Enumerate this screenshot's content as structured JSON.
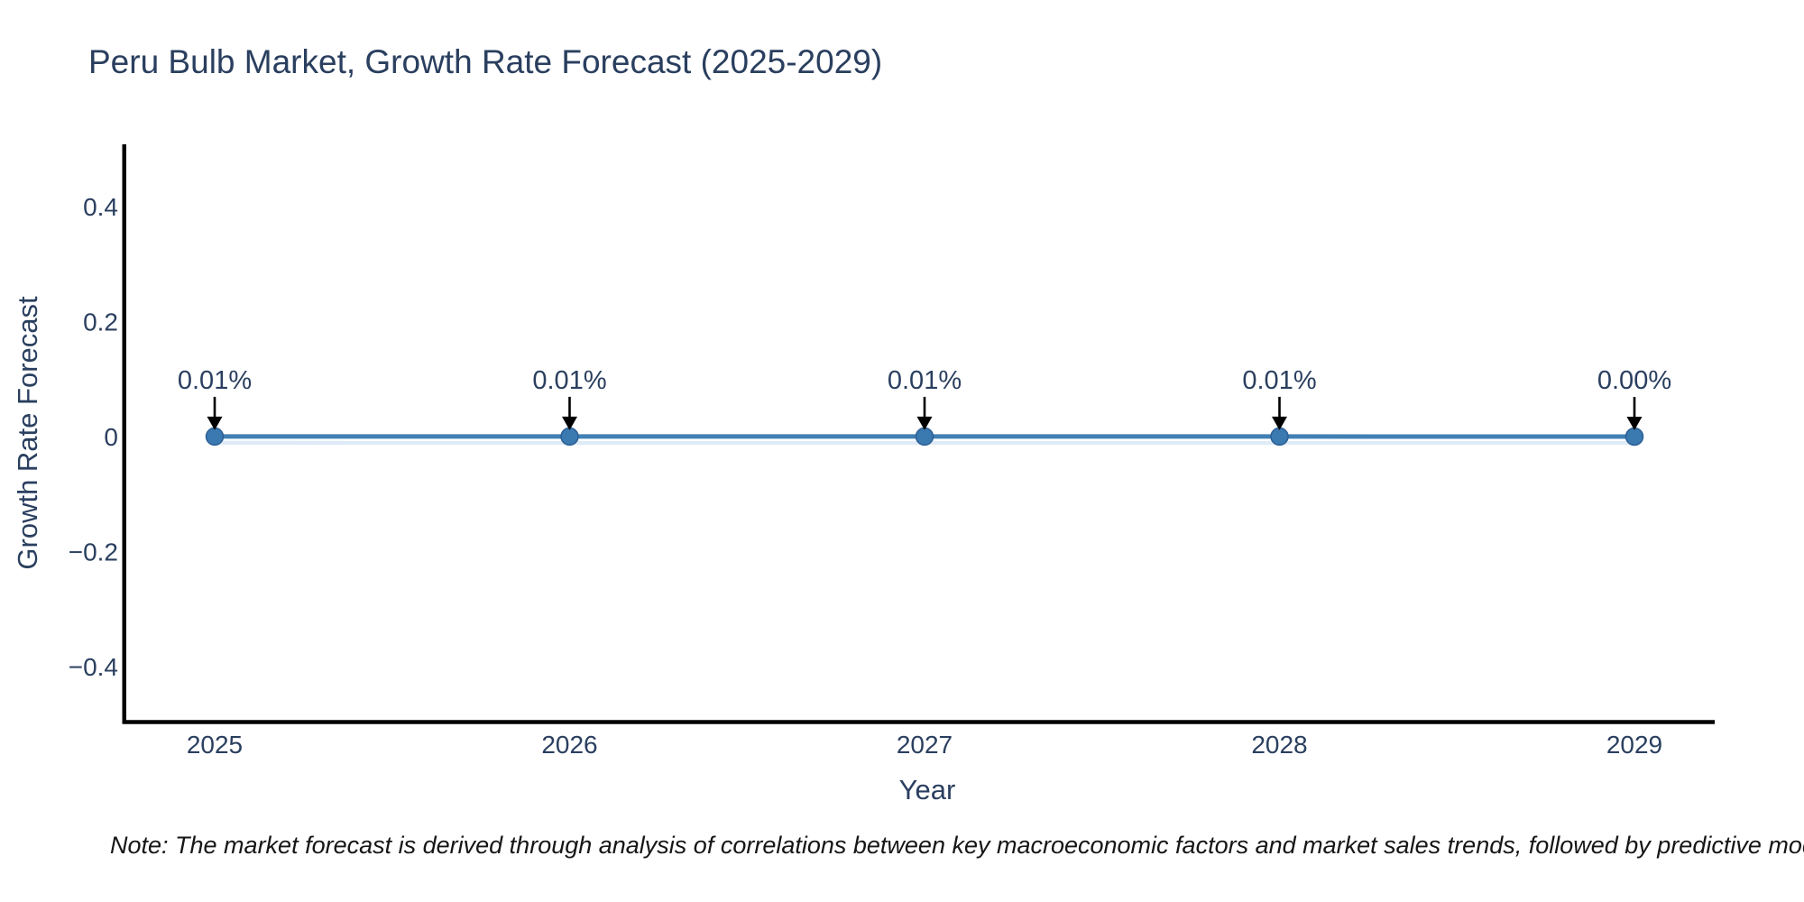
{
  "note": {
    "text": "Note: The market forecast is derived through analysis of correlations between key macroeconomic factors and market sales trends, followed by predictive modeling to project future sales"
  },
  "chart_data": {
    "type": "line",
    "title": "Peru Bulb Market, Growth Rate Forecast (2025-2029)",
    "xlabel": "Year",
    "ylabel": "Growth Rate Forecast",
    "categories": [
      "2025",
      "2026",
      "2027",
      "2028",
      "2029"
    ],
    "series": [
      {
        "name": "Growth Rate Forecast",
        "values_pct": [
          0.01,
          0.01,
          0.01,
          0.01,
          0.0
        ]
      }
    ],
    "point_labels": [
      "0.01%",
      "0.01%",
      "0.01%",
      "0.01%",
      "0.00%"
    ],
    "ytick_labels": [
      "0.4",
      "0.2",
      "0",
      "−0.2",
      "−0.4"
    ],
    "ytick_values": [
      0.4,
      0.2,
      0,
      -0.2,
      -0.4
    ],
    "ylim": [
      -0.5,
      0.5
    ],
    "grid": false,
    "legend": "none",
    "annotation_style": "down-arrow",
    "colors": {
      "line": "#4180b4",
      "line_shadow": "#d4e5f4",
      "marker_fill": "#3b79b1",
      "marker_edge": "#2c5f94",
      "axis_line": "#010101",
      "text": "#2a3f5f",
      "arrow": "#000000",
      "note_text": "#161616",
      "background": "#ffffff"
    }
  }
}
